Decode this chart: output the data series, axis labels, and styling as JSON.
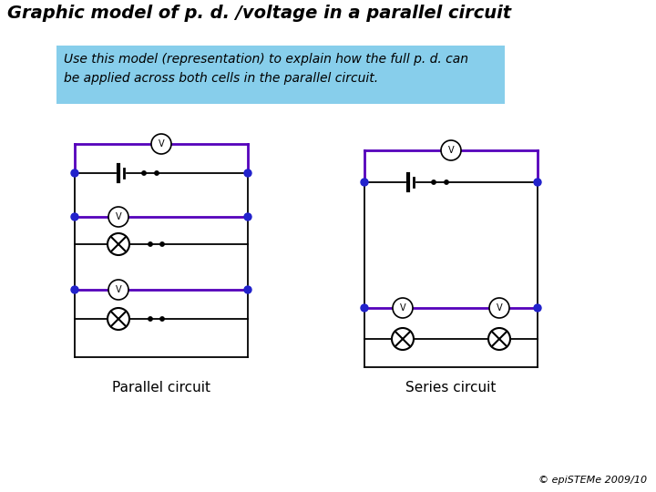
{
  "title": "Graphic model of p. d. /voltage in a parallel circuit",
  "subtitle_line1": "Use this model (representation) to explain how the full p. d. can",
  "subtitle_line2": "be applied across both cells in the parallel circuit.",
  "subtitle_bg": "#87CEEB",
  "label_parallel": "Parallel circuit",
  "label_series": "Series circuit",
  "copyright": "© epiSTEMe 2009/10",
  "circuit_color": "#5500BB",
  "wire_color": "#000000",
  "node_color": "#2222CC",
  "bg_color": "#FFFFFF",
  "title_color": "#000000",
  "title_fontsize": 14,
  "label_fontsize": 11
}
